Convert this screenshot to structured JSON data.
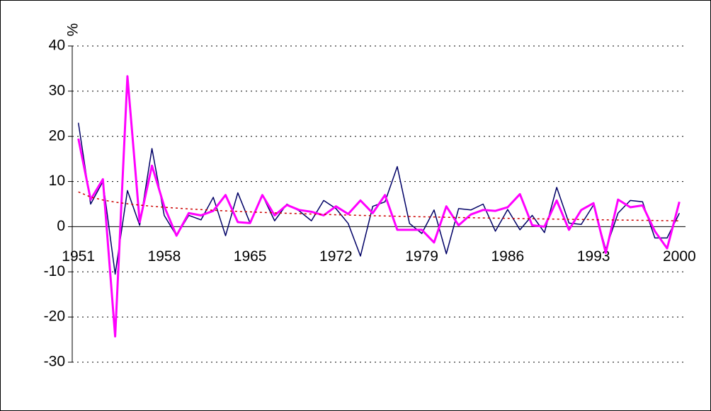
{
  "chart_data": {
    "type": "line",
    "y_label": "%",
    "x": [
      1951,
      1952,
      1953,
      1954,
      1955,
      1956,
      1957,
      1958,
      1959,
      1960,
      1961,
      1962,
      1963,
      1964,
      1965,
      1966,
      1967,
      1968,
      1969,
      1970,
      1971,
      1972,
      1973,
      1974,
      1975,
      1976,
      1977,
      1978,
      1979,
      1980,
      1981,
      1982,
      1983,
      1984,
      1985,
      1986,
      1987,
      1988,
      1989,
      1990,
      1991,
      1992,
      1993,
      1994,
      1995,
      1996,
      1997,
      1998,
      1999,
      2000
    ],
    "series": [
      {
        "color": "#000066",
        "width": 1.5,
        "values": [
          23,
          5,
          10,
          -10.5,
          8,
          0.3,
          17.3,
          2.5,
          -2,
          2.5,
          1.5,
          6.5,
          -2,
          7.5,
          0.8,
          7,
          1.3,
          5,
          3.5,
          1.3,
          5.8,
          4,
          0.7,
          -6.5,
          4.5,
          5.5,
          13.3,
          0.7,
          -1.5,
          3.7,
          -6,
          4,
          3.7,
          5,
          -1,
          3.8,
          -0.7,
          2.5,
          -1.3,
          8.7,
          0.8,
          0.5,
          4.8,
          -5,
          3,
          5.8,
          5.5,
          -2.5,
          -2.5,
          3
        ]
      },
      {
        "color": "#ff00ff",
        "width": 3,
        "values": [
          19.5,
          6,
          10.5,
          -24.3,
          33.3,
          1,
          13.5,
          4.5,
          -2,
          3,
          2.5,
          3.5,
          7,
          1,
          0.8,
          7,
          2.5,
          4.8,
          3.7,
          3.3,
          2.5,
          4.5,
          2.8,
          5.8,
          3,
          7,
          -0.7,
          -0.7,
          -0.7,
          -3.5,
          4.5,
          0.3,
          2.7,
          3.7,
          3.5,
          4.3,
          7.2,
          0.3,
          0,
          5.8,
          -0.7,
          3.7,
          5.2,
          -5.8,
          6,
          4.3,
          4.7,
          -1,
          -4.8,
          5.5
        ]
      },
      {
        "color": "#cc0000",
        "width": 1.5,
        "dashed": true,
        "values": [
          7.7,
          6.57,
          5.9,
          5.43,
          5.07,
          4.77,
          4.52,
          4.3,
          4.11,
          3.93,
          3.78,
          3.63,
          3.5,
          3.38,
          3.27,
          3.16,
          3.06,
          2.97,
          2.88,
          2.8,
          2.72,
          2.64,
          2.57,
          2.5,
          2.43,
          2.37,
          2.31,
          2.25,
          2.19,
          2.14,
          2.08,
          2.03,
          1.98,
          1.93,
          1.88,
          1.84,
          1.79,
          1.75,
          1.71,
          1.67,
          1.62,
          1.59,
          1.55,
          1.51,
          1.47,
          1.44,
          1.4,
          1.37,
          1.33,
          1.3
        ]
      }
    ],
    "xlim": [
      1950.5,
      2000.5
    ],
    "xticks": [
      1951,
      1958,
      1965,
      1972,
      1979,
      1986,
      1993,
      2000
    ],
    "ylim": [
      -30,
      40
    ],
    "yticks": [
      -30,
      -20,
      -10,
      0,
      10,
      20,
      30,
      40
    ],
    "grid": true
  }
}
